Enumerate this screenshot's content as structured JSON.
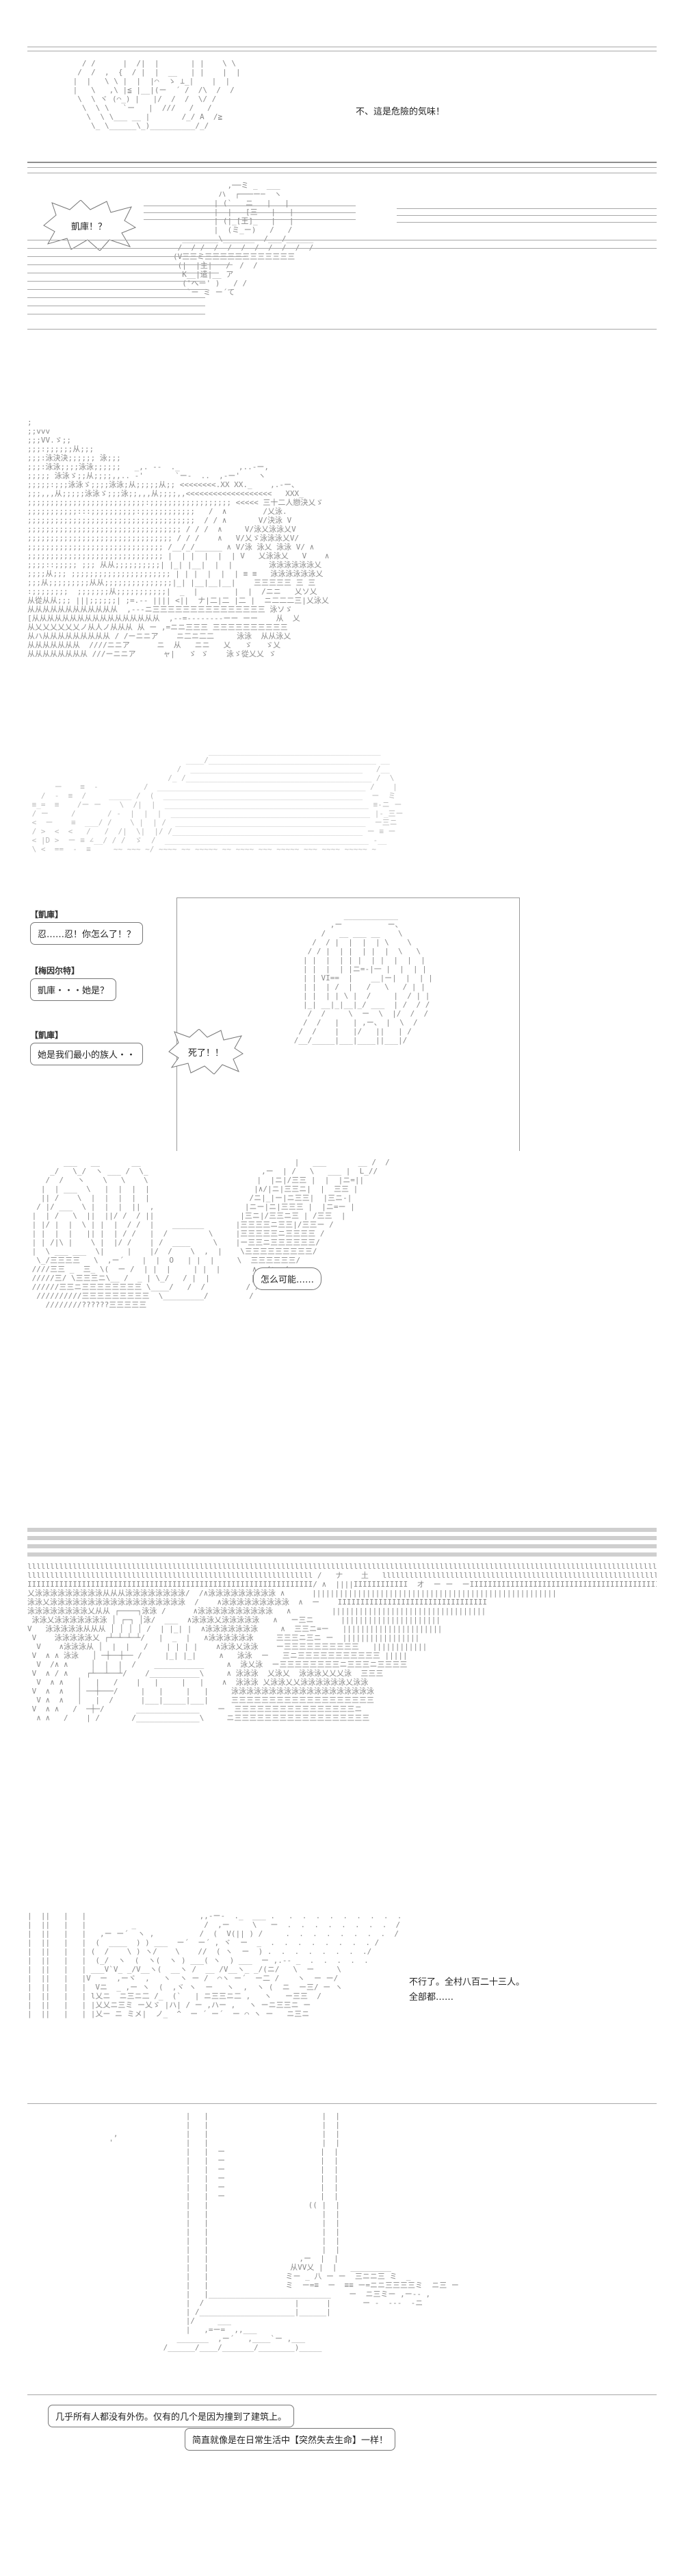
{
  "panels": [
    {
      "id": "panel-1",
      "caption": "不、這是危險的気味！",
      "shout": "凱庫！？"
    },
    {
      "id": "panel-2"
    },
    {
      "id": "panel-3",
      "dialogue": [
        {
          "speaker": "【凱庫】",
          "line": "忍……忍！你怎么了！？"
        },
        {
          "speaker": "【梅因尔特】",
          "line": "凱庫・・・她是？"
        },
        {
          "speaker": "【凱庫】",
          "line": "她是我们最小的族人・・"
        }
      ],
      "shout": "死了！！"
    },
    {
      "id": "panel-4",
      "bubble": "怎么可能……"
    },
    {
      "id": "panel-5"
    },
    {
      "id": "panel-6",
      "caption_line1": "不行了。全村八百二十三人。",
      "caption_line2": "全部都……"
    },
    {
      "id": "panel-7",
      "narration1": "几乎所有人都没有外伤。仅有的几个是因为撞到了建筑上。",
      "narration2": "简直就像是在日常生活中【突然失去生命】一样！"
    }
  ]
}
